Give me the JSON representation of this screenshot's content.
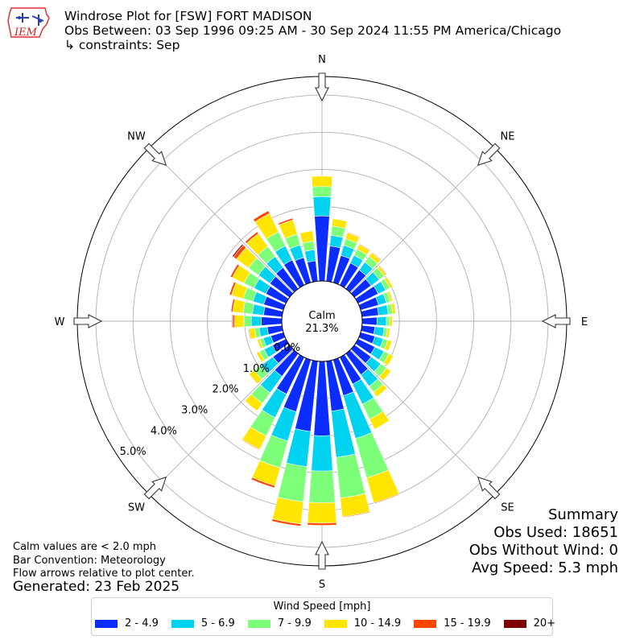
{
  "header": {
    "logo_text": "IEM",
    "title": "Windrose Plot for [FSW] FORT MADISON",
    "obs_between": "Obs Between: 03 Sep 1996 09:25 AM - 30 Sep 2024 11:55 PM America/Chicago",
    "constraints": "↳ constraints: Sep"
  },
  "chart_data": {
    "type": "windrose",
    "directions_labels": [
      "N",
      "NE",
      "E",
      "SE",
      "S",
      "SW",
      "W",
      "NW"
    ],
    "radial_ticks": [
      "0.0%",
      "1.0%",
      "2.0%",
      "3.0%",
      "4.0%",
      "5.0%"
    ],
    "radial_max": 5.5,
    "calm_label": "Calm",
    "calm_value": "21.3%",
    "speed_bins": [
      {
        "label": "2 - 4.9",
        "color": "#0a2cff"
      },
      {
        "label": "5 - 6.9",
        "color": "#00d2f0"
      },
      {
        "label": "7 - 9.9",
        "color": "#7dff7a"
      },
      {
        "label": "10 - 14.9",
        "color": "#ffe500"
      },
      {
        "label": "15 - 19.9",
        "color": "#ff4500"
      },
      {
        "label": "20+",
        "color": "#7f0000"
      }
    ],
    "sector_width_deg": 10,
    "sectors": [
      {
        "dir": 0,
        "values": [
          1.75,
          0.52,
          0.27,
          0.28,
          0.0,
          0.0
        ]
      },
      {
        "dir": 10,
        "values": [
          0.95,
          0.29,
          0.25,
          0.2,
          0.01,
          0.0
        ]
      },
      {
        "dir": 20,
        "values": [
          0.76,
          0.28,
          0.18,
          0.17,
          0.02,
          0.0
        ]
      },
      {
        "dir": 30,
        "values": [
          0.66,
          0.23,
          0.18,
          0.14,
          0.02,
          0.0
        ]
      },
      {
        "dir": 40,
        "values": [
          0.62,
          0.26,
          0.19,
          0.12,
          0.02,
          0.0
        ]
      },
      {
        "dir": 50,
        "values": [
          0.55,
          0.27,
          0.16,
          0.07,
          0.02,
          0.0
        ]
      },
      {
        "dir": 60,
        "values": [
          0.6,
          0.22,
          0.13,
          0.08,
          0.0,
          0.0
        ]
      },
      {
        "dir": 70,
        "values": [
          0.5,
          0.22,
          0.12,
          0.06,
          0.0,
          0.0
        ]
      },
      {
        "dir": 80,
        "values": [
          0.45,
          0.26,
          0.12,
          0.08,
          0.0,
          0.0
        ]
      },
      {
        "dir": 90,
        "values": [
          0.4,
          0.25,
          0.09,
          0.07,
          0.0,
          0.0
        ]
      },
      {
        "dir": 100,
        "values": [
          0.35,
          0.25,
          0.09,
          0.07,
          0.0,
          0.0
        ]
      },
      {
        "dir": 110,
        "values": [
          0.4,
          0.23,
          0.13,
          0.11,
          0.0,
          0.0
        ]
      },
      {
        "dir": 120,
        "values": [
          0.5,
          0.27,
          0.15,
          0.13,
          0.0,
          0.0
        ]
      },
      {
        "dir": 130,
        "values": [
          0.55,
          0.32,
          0.19,
          0.15,
          0.01,
          0.0
        ]
      },
      {
        "dir": 140,
        "values": [
          0.7,
          0.38,
          0.2,
          0.15,
          0.01,
          0.0
        ]
      },
      {
        "dir": 150,
        "values": [
          0.8,
          0.6,
          0.45,
          0.3,
          0.01,
          0.0
        ]
      },
      {
        "dir": 160,
        "values": [
          1.0,
          1.2,
          1.1,
          0.7,
          0.02,
          0.0
        ]
      },
      {
        "dir": 170,
        "values": [
          1.35,
          1.25,
          1.1,
          0.5,
          0.02,
          0.0
        ]
      },
      {
        "dir": 180,
        "values": [
          2.0,
          0.95,
          0.85,
          0.55,
          0.06,
          0.0
        ]
      },
      {
        "dir": 190,
        "values": [
          1.9,
          0.95,
          0.95,
          0.6,
          0.06,
          0.0
        ]
      },
      {
        "dir": 200,
        "values": [
          1.45,
          0.82,
          0.75,
          0.5,
          0.06,
          0.0
        ]
      },
      {
        "dir": 210,
        "values": [
          1.1,
          0.7,
          0.55,
          0.4,
          0.02,
          0.0
        ]
      },
      {
        "dir": 220,
        "values": [
          0.75,
          0.55,
          0.35,
          0.25,
          0.01,
          0.0
        ]
      },
      {
        "dir": 230,
        "values": [
          0.55,
          0.4,
          0.22,
          0.17,
          0.0,
          0.0
        ]
      },
      {
        "dir": 240,
        "values": [
          0.4,
          0.25,
          0.14,
          0.09,
          0.0,
          0.0
        ]
      },
      {
        "dir": 250,
        "values": [
          0.35,
          0.21,
          0.1,
          0.07,
          0.0,
          0.0
        ]
      },
      {
        "dir": 260,
        "values": [
          0.4,
          0.22,
          0.12,
          0.15,
          0.02,
          0.0
        ]
      },
      {
        "dir": 270,
        "values": [
          0.55,
          0.27,
          0.2,
          0.25,
          0.05,
          0.02
        ]
      },
      {
        "dir": 280,
        "values": [
          0.5,
          0.3,
          0.25,
          0.28,
          0.05,
          0.01
        ]
      },
      {
        "dir": 290,
        "values": [
          0.55,
          0.3,
          0.27,
          0.33,
          0.06,
          0.01
        ]
      },
      {
        "dir": 300,
        "values": [
          0.6,
          0.35,
          0.3,
          0.35,
          0.06,
          0.01
        ]
      },
      {
        "dir": 310,
        "values": [
          0.65,
          0.38,
          0.33,
          0.4,
          0.1,
          0.04
        ]
      },
      {
        "dir": 320,
        "values": [
          0.7,
          0.37,
          0.33,
          0.43,
          0.06,
          0.0
        ]
      },
      {
        "dir": 330,
        "values": [
          0.75,
          0.42,
          0.42,
          0.55,
          0.08,
          0.0
        ]
      },
      {
        "dir": 340,
        "values": [
          0.7,
          0.35,
          0.3,
          0.4,
          0.05,
          0.0
        ]
      },
      {
        "dir": 350,
        "values": [
          0.55,
          0.3,
          0.23,
          0.28,
          0.0,
          0.0
        ]
      }
    ]
  },
  "footer": {
    "calm_note": "Calm values are < 2.0 mph",
    "bar_note": "Bar Convention: Meteorology",
    "flow_note": "Flow arrows relative to plot center.",
    "generated": "Generated: 23 Feb 2025"
  },
  "summary": {
    "heading": "Summary",
    "obs_used": "Obs Used: 18651",
    "obs_without_wind": "Obs Without Wind: 0",
    "avg_speed": "Avg Speed: 5.3 mph"
  },
  "legend": {
    "title": "Wind Speed [mph]"
  }
}
